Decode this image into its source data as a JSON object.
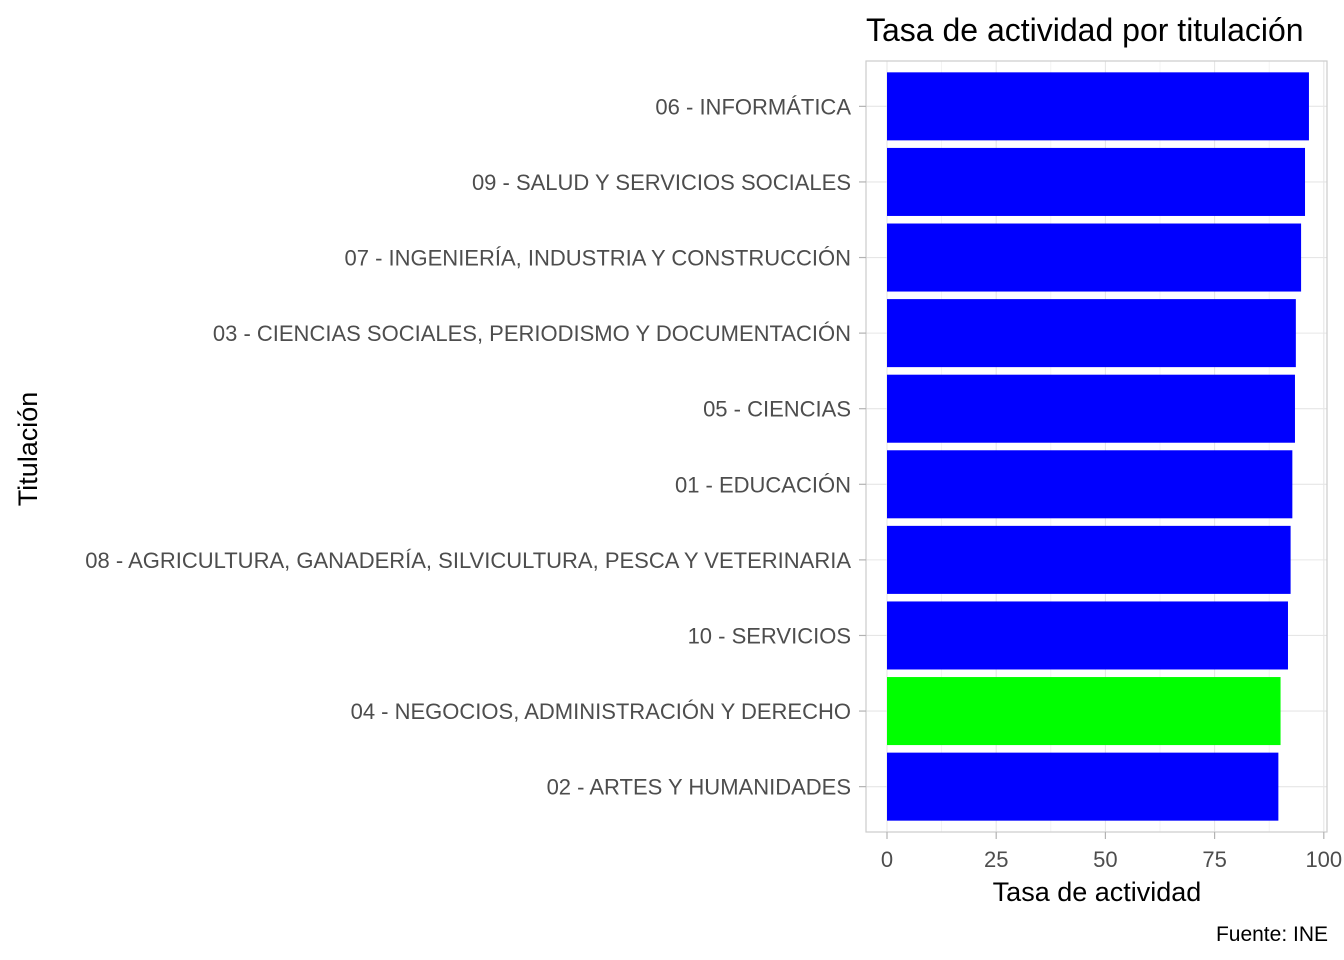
{
  "chart_data": {
    "type": "bar",
    "orientation": "horizontal",
    "title": "Tasa de actividad por titulación",
    "xlabel": "Tasa de actividad",
    "ylabel": "Titulación",
    "caption": "Fuente: INE",
    "xlim": [
      0,
      100
    ],
    "x_ticks": [
      0,
      25,
      50,
      75,
      100
    ],
    "grid": true,
    "categories": [
      "06 - INFORMÁTICA",
      "09 - SALUD Y SERVICIOS SOCIALES",
      "07 - INGENIERÍA, INDUSTRIA Y CONSTRUCCIÓN",
      "03 - CIENCIAS SOCIALES, PERIODISMO Y DOCUMENTACIÓN",
      "05 - CIENCIAS",
      "01 - EDUCACIÓN",
      "08 - AGRICULTURA, GANADERÍA, SILVICULTURA, PESCA Y VETERINARIA",
      "10 - SERVICIOS",
      "04 - NEGOCIOS, ADMINISTRACIÓN Y DERECHO",
      "02 - ARTES Y HUMANIDADES"
    ],
    "values": [
      96.6,
      95.7,
      94.8,
      93.6,
      93.4,
      92.8,
      92.4,
      91.8,
      90.1,
      89.6
    ],
    "bar_colors": [
      "#0000ff",
      "#0000ff",
      "#0000ff",
      "#0000ff",
      "#0000ff",
      "#0000ff",
      "#0000ff",
      "#0000ff",
      "#00ff00",
      "#0000ff"
    ]
  }
}
